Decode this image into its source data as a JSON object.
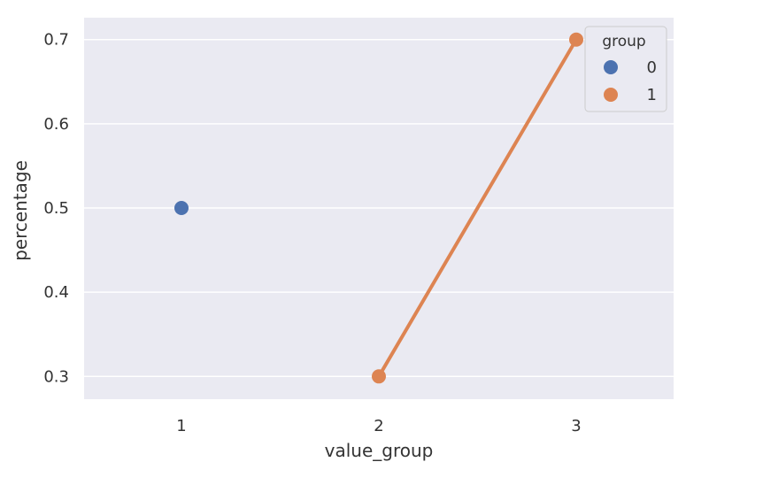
{
  "chart_data": {
    "type": "line",
    "categories": [
      "1",
      "2",
      "3"
    ],
    "xlabel": "value_group",
    "ylabel": "percentage",
    "ylim": [
      0.273,
      0.726
    ],
    "yticks": [
      "0.3",
      "0.4",
      "0.5",
      "0.6",
      "0.7"
    ],
    "grid": true,
    "legend": {
      "title": "group",
      "placement": "top-right",
      "entries": [
        "0",
        "1"
      ]
    },
    "series": [
      {
        "name": "0",
        "color": "#4c72b0",
        "points": [
          {
            "x": "1",
            "y": 0.5
          }
        ]
      },
      {
        "name": "1",
        "color": "#dd8452",
        "points": [
          {
            "x": "2",
            "y": 0.3
          },
          {
            "x": "3",
            "y": 0.7
          }
        ]
      }
    ]
  },
  "colors": {
    "plot_background": "#eaeaf2",
    "grid": "#ffffff"
  }
}
